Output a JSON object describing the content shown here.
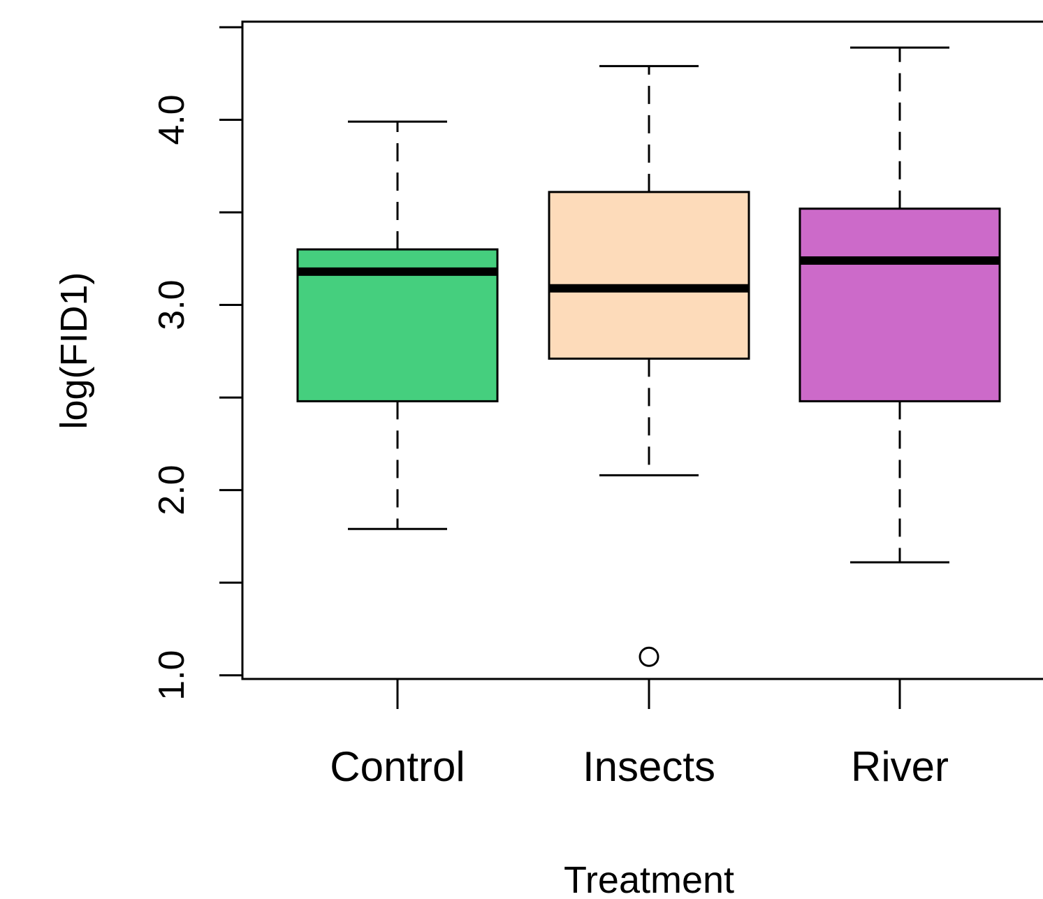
{
  "chart_data": {
    "type": "boxplot",
    "xlabel": "Treatment",
    "ylabel": "log(FID1)",
    "ylim": [
      0.98,
      4.53
    ],
    "y_ticks": [
      1.0,
      1.5,
      2.0,
      2.5,
      3.0,
      3.5,
      4.0,
      4.5
    ],
    "y_tick_labels": [
      "1.0",
      "",
      "2.0",
      "",
      "3.0",
      "",
      "4.0",
      ""
    ],
    "categories": [
      "Control",
      "Insects",
      "River"
    ],
    "colors": [
      "#45cf7e",
      "#fddbba",
      "#cc6ac9"
    ],
    "boxes": [
      {
        "label": "Control",
        "whisker_low": 1.79,
        "q1": 2.48,
        "median": 3.18,
        "q3": 3.3,
        "whisker_high": 3.99,
        "outliers": []
      },
      {
        "label": "Insects",
        "whisker_low": 2.08,
        "q1": 2.71,
        "median": 3.09,
        "q3": 3.61,
        "whisker_high": 4.29,
        "outliers": [
          1.1
        ]
      },
      {
        "label": "River",
        "whisker_low": 1.61,
        "q1": 2.48,
        "median": 3.24,
        "q3": 3.52,
        "whisker_high": 4.39,
        "outliers": []
      }
    ]
  }
}
